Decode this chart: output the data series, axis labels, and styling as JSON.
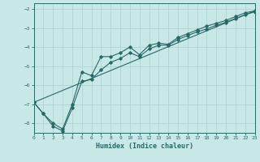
{
  "title": "",
  "xlabel": "Humidex (Indice chaleur)",
  "ylabel": "",
  "bg_color": "#c8e8e8",
  "grid_color": "#b0d4d4",
  "line_color": "#2a6868",
  "xlim": [
    0,
    23
  ],
  "ylim": [
    -8.5,
    -1.7
  ],
  "xticks": [
    0,
    1,
    2,
    3,
    4,
    5,
    6,
    7,
    8,
    9,
    10,
    11,
    12,
    13,
    14,
    15,
    16,
    17,
    18,
    19,
    20,
    21,
    22,
    23
  ],
  "yticks": [
    -8,
    -7,
    -6,
    -5,
    -4,
    -3,
    -2
  ],
  "line1_x": [
    0,
    1,
    2,
    3,
    4,
    5,
    6,
    7,
    8,
    9,
    10,
    11,
    12,
    13,
    14,
    15,
    16,
    17,
    18,
    19,
    20,
    21,
    22,
    23
  ],
  "line1_y": [
    -6.9,
    -7.5,
    -8.0,
    -8.3,
    -7.0,
    -5.3,
    -5.5,
    -4.5,
    -4.5,
    -4.3,
    -4.0,
    -4.4,
    -3.9,
    -3.8,
    -3.85,
    -3.5,
    -3.3,
    -3.1,
    -2.9,
    -2.75,
    -2.6,
    -2.4,
    -2.2,
    -2.1
  ],
  "line2_x": [
    0,
    1,
    2,
    3,
    4,
    5,
    6,
    7,
    8,
    9,
    10,
    11,
    12,
    13,
    14,
    15,
    16,
    17,
    18,
    19,
    20,
    21,
    22,
    23
  ],
  "line2_y": [
    -6.9,
    -7.5,
    -8.15,
    -8.4,
    -7.2,
    -5.8,
    -5.7,
    -5.2,
    -4.8,
    -4.6,
    -4.3,
    -4.5,
    -4.1,
    -3.9,
    -3.9,
    -3.6,
    -3.4,
    -3.2,
    -3.05,
    -2.85,
    -2.7,
    -2.5,
    -2.3,
    -2.15
  ],
  "line3_x": [
    0,
    23
  ],
  "line3_y": [
    -6.9,
    -2.1
  ]
}
